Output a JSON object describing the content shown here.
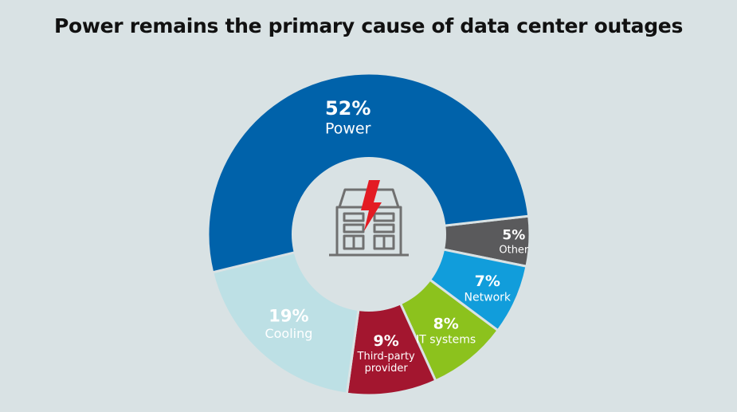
{
  "chart_data": {
    "type": "pie",
    "title": "Power remains the primary cause of data center outages",
    "slices": [
      {
        "name": "Other",
        "value": 5,
        "pct_label": "5%",
        "label_lines": [
          "Other"
        ],
        "color": "#5a5a5c",
        "text_color": "#ffffff"
      },
      {
        "name": "Network",
        "value": 7,
        "pct_label": "7%",
        "label_lines": [
          "Network"
        ],
        "color": "#119ddb",
        "text_color": "#ffffff"
      },
      {
        "name": "IT systems",
        "value": 8,
        "pct_label": "8%",
        "label_lines": [
          "IT systems"
        ],
        "color": "#8cc21d",
        "text_color": "#ffffff"
      },
      {
        "name": "Third-party provider",
        "value": 9,
        "pct_label": "9%",
        "label_lines": [
          "Third-party",
          "provider"
        ],
        "color": "#a3162f",
        "text_color": "#ffffff"
      },
      {
        "name": "Cooling",
        "value": 19,
        "pct_label": "19%",
        "label_lines": [
          "Cooling"
        ],
        "color": "#bde0e5",
        "text_color": "#4a4a4a"
      },
      {
        "name": "Power",
        "value": 52,
        "pct_label": "52%",
        "label_lines": [
          "Power"
        ],
        "color": "#0062aa",
        "text_color": "#ffffff"
      }
    ],
    "center_icon": "data-center-building-lightning-icon",
    "colors": {
      "background": "#d9e2e4",
      "hole": "#d9e2e4",
      "icon_stroke": "#707070",
      "lightning": "#e31b23"
    }
  }
}
